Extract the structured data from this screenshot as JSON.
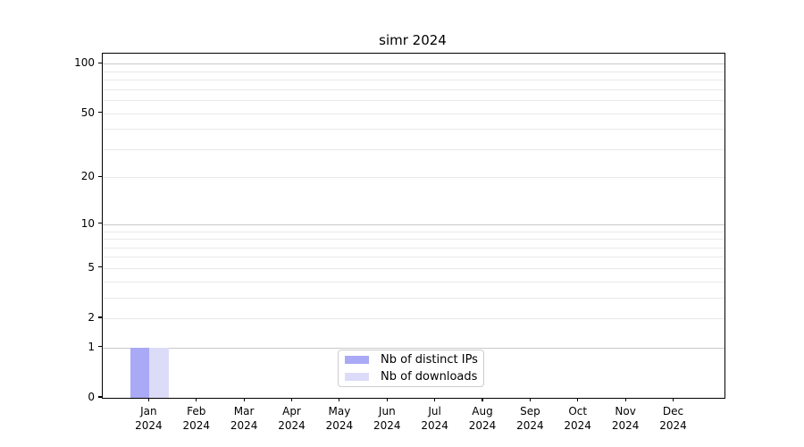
{
  "chart_data": {
    "type": "bar",
    "title": "simr 2024",
    "categories": [
      "Jan",
      "Feb",
      "Mar",
      "Apr",
      "May",
      "Jun",
      "Jul",
      "Aug",
      "Sep",
      "Oct",
      "Nov",
      "Dec"
    ],
    "category_year": "2024",
    "series": [
      {
        "name": "Nb of distinct IPs",
        "color": "#a9a9f5",
        "values": [
          1,
          0,
          0,
          0,
          0,
          0,
          0,
          0,
          0,
          0,
          0,
          0
        ]
      },
      {
        "name": "Nb of downloads",
        "color": "#dcdcf9",
        "values": [
          1,
          0,
          0,
          0,
          0,
          0,
          0,
          0,
          0,
          0,
          0,
          0
        ]
      }
    ],
    "xlabel": "",
    "ylabel": "",
    "yscale": "log10(1+v)",
    "ylim": [
      0,
      115
    ],
    "ytick_values": [
      100,
      50,
      20,
      10,
      5,
      2,
      1,
      0
    ],
    "ytick_labels": [
      "100",
      "50",
      "20",
      "10",
      "5",
      "2",
      "1",
      "0"
    ],
    "grid": true,
    "grid_values_minor": [
      2,
      3,
      4,
      5,
      6,
      7,
      8,
      9,
      20,
      30,
      40,
      50,
      60,
      70,
      80,
      90
    ],
    "grid_values_major": [
      1,
      10,
      100
    ],
    "legend_position": "bottom-center",
    "colors": {
      "axis": "#000000",
      "grid_minor": "#e9e9e9",
      "grid_major": "#c9c9c9",
      "legend_border": "#cccccc",
      "background": "#ffffff"
    }
  }
}
